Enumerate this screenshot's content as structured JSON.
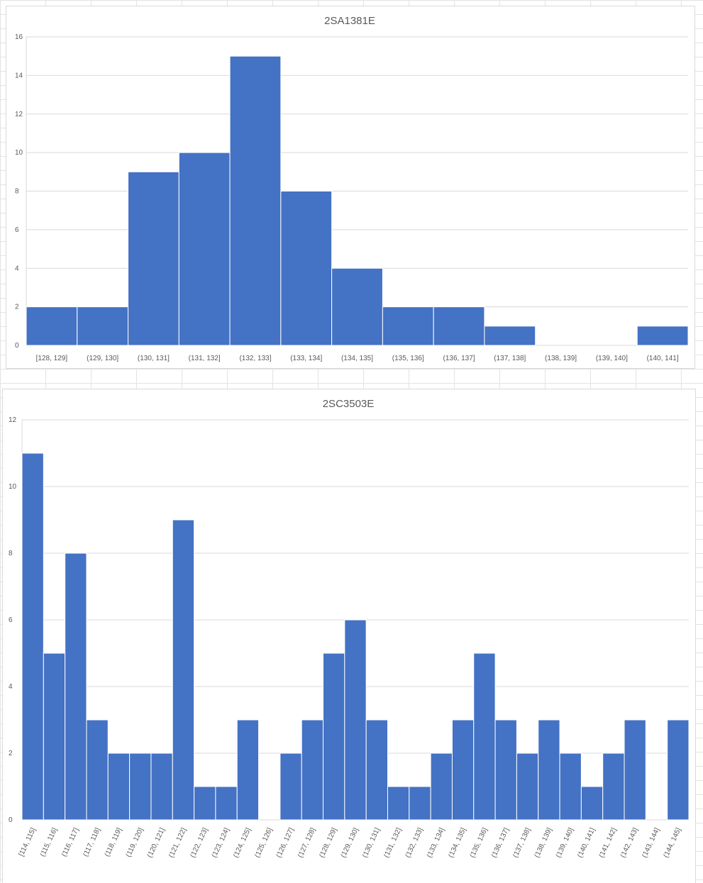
{
  "colors": {
    "bar": "#4472C4",
    "grid": "#d9d9d9",
    "text": "#595959"
  },
  "chart_data": [
    {
      "type": "bar",
      "title": "2SA1381E",
      "categories": [
        "[128, 129]",
        "(129, 130]",
        "(130, 131]",
        "(131, 132]",
        "(132, 133]",
        "(133, 134]",
        "(134, 135]",
        "(135, 136]",
        "(136, 137]",
        "(137, 138]",
        "(138, 139]",
        "(139, 140]",
        "(140, 141]"
      ],
      "values": [
        2,
        2,
        9,
        10,
        15,
        8,
        4,
        2,
        2,
        1,
        0,
        0,
        1
      ],
      "ylim": [
        0,
        16
      ],
      "yticks": [
        0,
        2,
        4,
        6,
        8,
        10,
        12,
        14,
        16
      ],
      "grid": true,
      "legend": "none"
    },
    {
      "type": "bar",
      "title": "2SC3503E",
      "categories": [
        "[114, 115]",
        "(115, 116]",
        "(116, 117]",
        "(117, 118]",
        "(118, 119]",
        "(119, 120]",
        "(120, 121]",
        "(121, 122]",
        "(122, 123]",
        "(123, 124]",
        "(124, 125]",
        "(125, 126]",
        "(126, 127]",
        "(127, 128]",
        "(128, 129]",
        "(129, 130]",
        "(130, 131]",
        "(131, 132]",
        "(132, 133]",
        "(133, 134]",
        "(134, 135]",
        "(135, 136]",
        "(136, 137]",
        "(137, 138]",
        "(138, 139]",
        "(139, 140]",
        "(140, 141]",
        "(141, 142]",
        "(142, 143]",
        "(143, 144]",
        "(144, 145]"
      ],
      "values": [
        11,
        5,
        8,
        3,
        2,
        2,
        2,
        9,
        1,
        1,
        3,
        0,
        2,
        3,
        5,
        6,
        3,
        1,
        1,
        2,
        3,
        5,
        3,
        2,
        3,
        2,
        1,
        2,
        3,
        0,
        3
      ],
      "ylim": [
        0,
        12
      ],
      "yticks": [
        0,
        2,
        4,
        6,
        8,
        10,
        12
      ],
      "grid": true,
      "legend": "none"
    }
  ]
}
